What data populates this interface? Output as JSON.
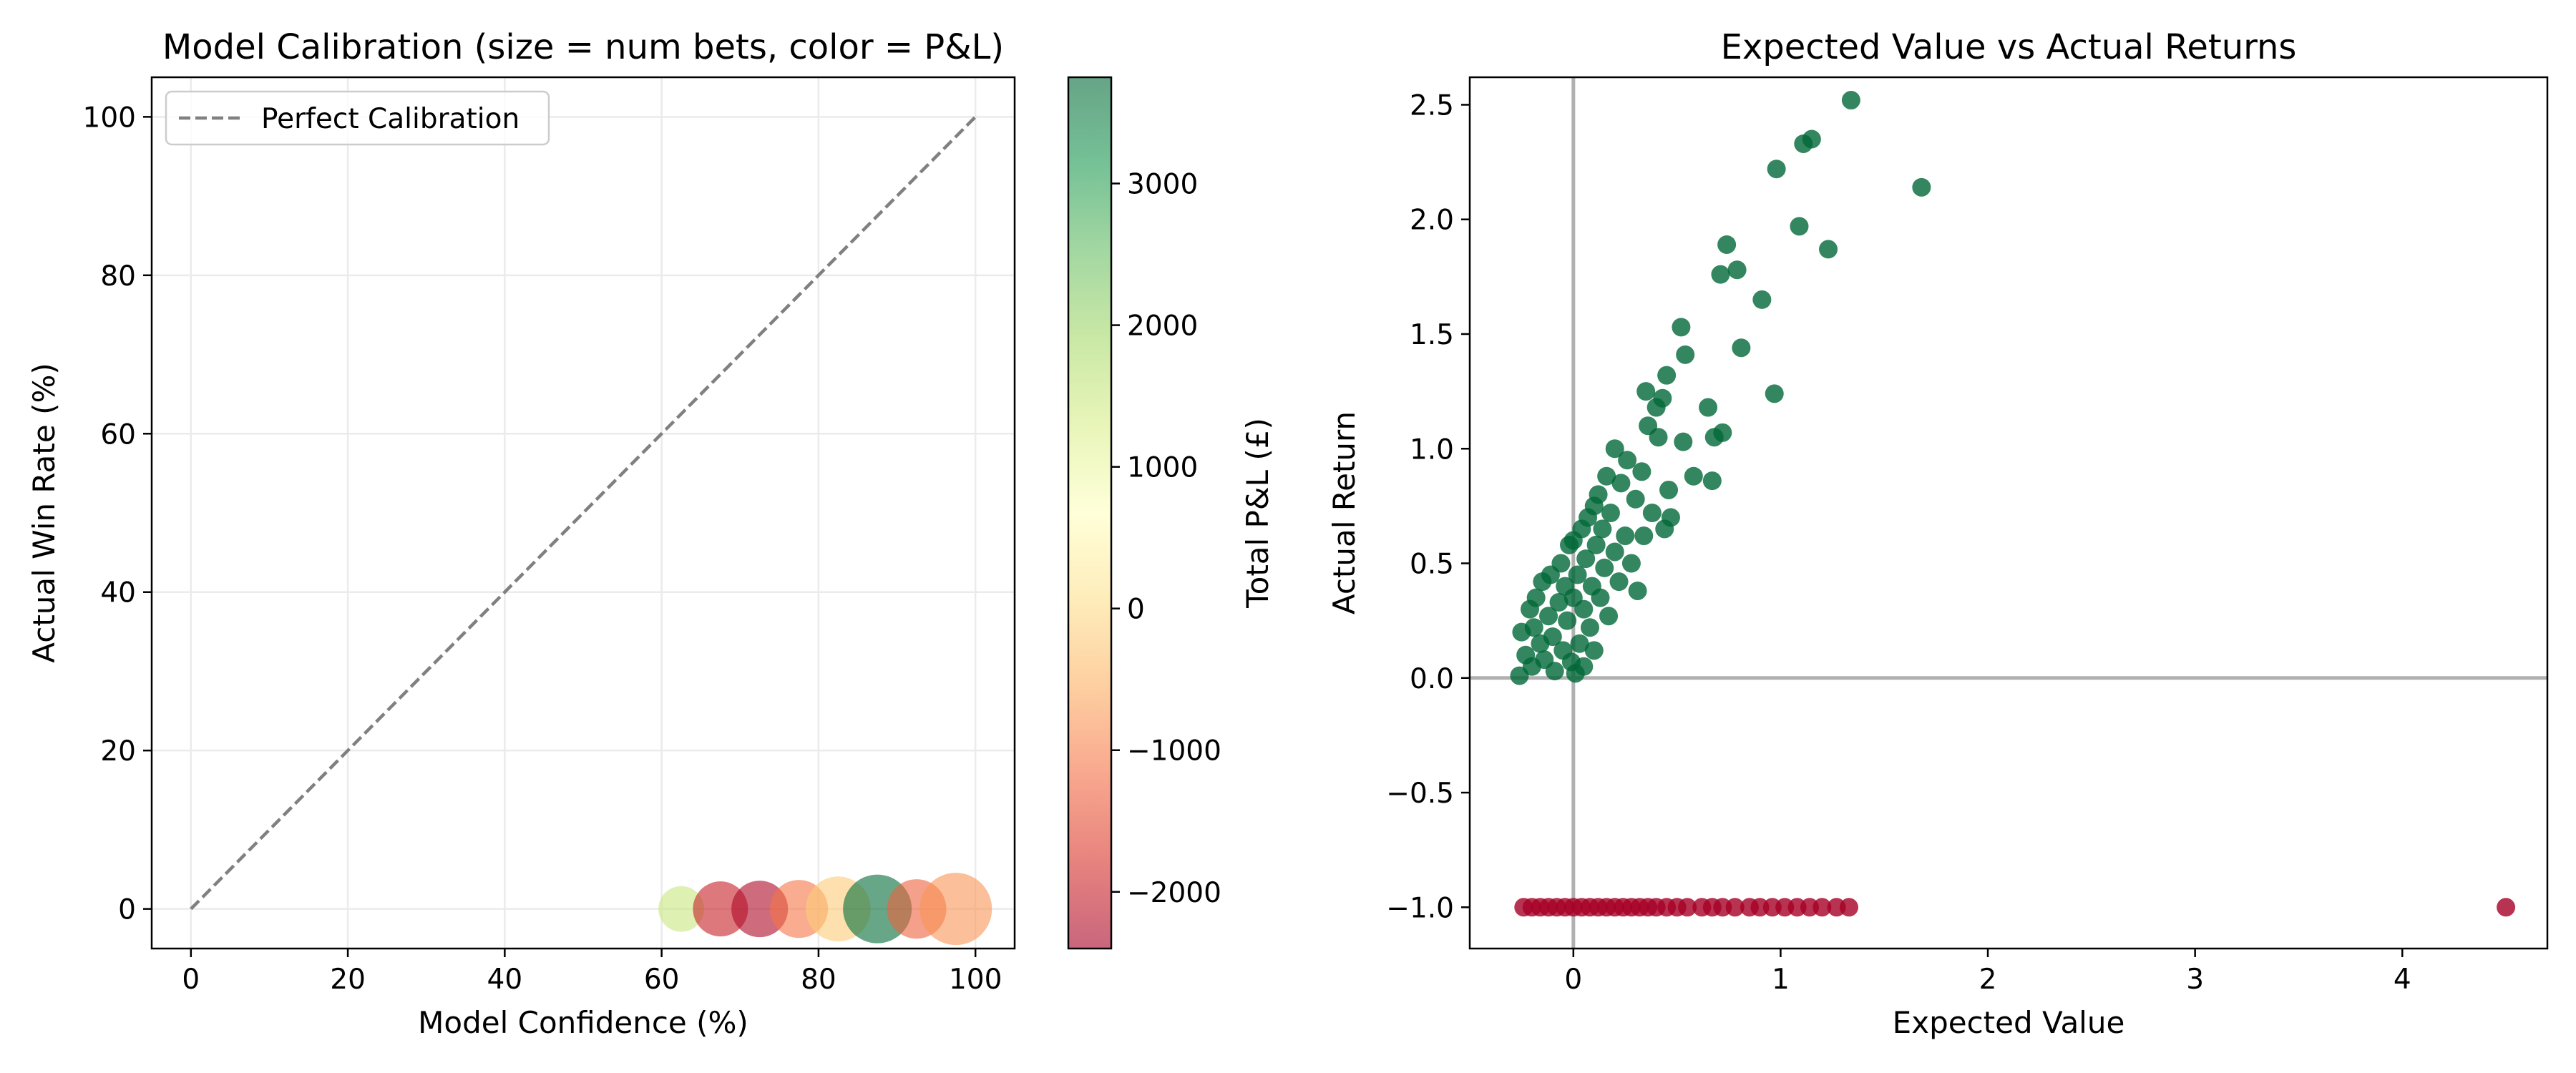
{
  "chart_data": [
    {
      "type": "scatter",
      "title": "Model Calibration (size = num bets, color = P&L)",
      "xlabel": "Model Confidence (%)",
      "ylabel": "Actual Win Rate (%)",
      "xlim": [
        -5,
        105
      ],
      "ylim": [
        -5,
        105
      ],
      "xticks": [
        0,
        20,
        40,
        60,
        80,
        100
      ],
      "yticks": [
        0,
        20,
        40,
        60,
        80,
        100
      ],
      "grid": true,
      "legend": {
        "position": "top-left",
        "entries": [
          "Perfect Calibration"
        ]
      },
      "reference_line": {
        "name": "Perfect Calibration",
        "x": [
          0,
          100
        ],
        "y": [
          0,
          100
        ],
        "style": "dashed",
        "color": "#808080"
      },
      "points": [
        {
          "x": 62.5,
          "y": 0,
          "num_bets": 62,
          "pnl": 1500
        },
        {
          "x": 67.5,
          "y": 0,
          "num_bets": 90,
          "pnl": -2000
        },
        {
          "x": 72.5,
          "y": 0,
          "num_bets": 95,
          "pnl": -2300
        },
        {
          "x": 77.5,
          "y": 0,
          "num_bets": 100,
          "pnl": -1100
        },
        {
          "x": 82.5,
          "y": 0,
          "num_bets": 125,
          "pnl": -200
        },
        {
          "x": 87.5,
          "y": 0,
          "num_bets": 140,
          "pnl": 3700
        },
        {
          "x": 92.5,
          "y": 0,
          "num_bets": 105,
          "pnl": -1300
        },
        {
          "x": 97.5,
          "y": 0,
          "num_bets": 155,
          "pnl": -800
        }
      ],
      "colorbar": {
        "label": "Total P&L (£)",
        "min": -2400,
        "max": 3750,
        "ticks": [
          3000,
          2000,
          1000,
          0,
          -1000,
          -2000
        ],
        "tick_labels": [
          "3000",
          "2000",
          "1000",
          "0",
          "−1000",
          "−2000"
        ],
        "colormap": "RdYlGn"
      }
    },
    {
      "type": "scatter",
      "title": "Expected Value vs Actual Returns",
      "xlabel": "Expected Value",
      "ylabel": "Actual Return",
      "xlim": [
        -0.5,
        4.7
      ],
      "ylim": [
        -1.18,
        2.62
      ],
      "xticks": [
        0,
        1,
        2,
        3,
        4
      ],
      "xtick_labels": [
        "0",
        "1",
        "2",
        "3",
        "4"
      ],
      "yticks": [
        -1.0,
        -0.5,
        0.0,
        0.5,
        1.0,
        1.5,
        2.0,
        2.5
      ],
      "ytick_labels": [
        "−1.0",
        "−0.5",
        "0.0",
        "0.5",
        "1.0",
        "1.5",
        "2.0",
        "2.5"
      ],
      "grid": false,
      "reference_lines": [
        {
          "axis": "x",
          "value": 0
        },
        {
          "axis": "y",
          "value": 0
        }
      ],
      "series": [
        {
          "name": "",
          "color": "#006837",
          "points": [
            [
              -0.26,
              0.01
            ],
            [
              -0.25,
              0.2
            ],
            [
              -0.23,
              0.1
            ],
            [
              -0.21,
              0.3
            ],
            [
              -0.2,
              0.05
            ],
            [
              -0.19,
              0.22
            ],
            [
              -0.18,
              0.35
            ],
            [
              -0.16,
              0.15
            ],
            [
              -0.15,
              0.42
            ],
            [
              -0.14,
              0.08
            ],
            [
              -0.12,
              0.27
            ],
            [
              -0.11,
              0.45
            ],
            [
              -0.1,
              0.18
            ],
            [
              -0.09,
              0.03
            ],
            [
              -0.07,
              0.33
            ],
            [
              -0.06,
              0.5
            ],
            [
              -0.05,
              0.12
            ],
            [
              -0.04,
              0.4
            ],
            [
              -0.03,
              0.25
            ],
            [
              -0.02,
              0.58
            ],
            [
              -0.01,
              0.07
            ],
            [
              0.0,
              0.6
            ],
            [
              0.0,
              0.35
            ],
            [
              0.01,
              0.02
            ],
            [
              0.02,
              0.45
            ],
            [
              0.03,
              0.15
            ],
            [
              0.04,
              0.65
            ],
            [
              0.05,
              0.3
            ],
            [
              0.05,
              0.05
            ],
            [
              0.06,
              0.52
            ],
            [
              0.07,
              0.7
            ],
            [
              0.08,
              0.22
            ],
            [
              0.09,
              0.4
            ],
            [
              0.1,
              0.75
            ],
            [
              0.1,
              0.12
            ],
            [
              0.11,
              0.58
            ],
            [
              0.12,
              0.8
            ],
            [
              0.13,
              0.35
            ],
            [
              0.14,
              0.65
            ],
            [
              0.15,
              0.48
            ],
            [
              0.16,
              0.88
            ],
            [
              0.17,
              0.27
            ],
            [
              0.18,
              0.72
            ],
            [
              0.2,
              0.55
            ],
            [
              0.2,
              1.0
            ],
            [
              0.22,
              0.42
            ],
            [
              0.23,
              0.85
            ],
            [
              0.25,
              0.62
            ],
            [
              0.26,
              0.95
            ],
            [
              0.28,
              0.5
            ],
            [
              0.3,
              0.78
            ],
            [
              0.31,
              0.38
            ],
            [
              0.33,
              0.9
            ],
            [
              0.34,
              0.62
            ],
            [
              0.35,
              1.25
            ],
            [
              0.36,
              1.1
            ],
            [
              0.38,
              0.72
            ],
            [
              0.4,
              1.18
            ],
            [
              0.41,
              1.05
            ],
            [
              0.43,
              1.22
            ],
            [
              0.44,
              0.65
            ],
            [
              0.45,
              1.32
            ],
            [
              0.46,
              0.82
            ],
            [
              0.47,
              0.7
            ],
            [
              0.52,
              1.53
            ],
            [
              0.54,
              1.41
            ],
            [
              0.53,
              1.03
            ],
            [
              0.58,
              0.88
            ],
            [
              0.65,
              1.18
            ],
            [
              0.67,
              0.86
            ],
            [
              0.68,
              1.05
            ],
            [
              0.71,
              1.76
            ],
            [
              0.72,
              1.07
            ],
            [
              0.74,
              1.89
            ],
            [
              0.79,
              1.78
            ],
            [
              0.81,
              1.44
            ],
            [
              0.91,
              1.65
            ],
            [
              0.97,
              1.24
            ],
            [
              0.98,
              2.22
            ],
            [
              1.09,
              1.97
            ],
            [
              1.11,
              2.33
            ],
            [
              1.15,
              2.35
            ],
            [
              1.23,
              1.87
            ],
            [
              1.34,
              2.52
            ],
            [
              1.68,
              2.14
            ]
          ]
        },
        {
          "name": "",
          "color": "#a50026",
          "points": [
            [
              -0.24,
              -1
            ],
            [
              -0.2,
              -1
            ],
            [
              -0.16,
              -1
            ],
            [
              -0.12,
              -1
            ],
            [
              -0.08,
              -1
            ],
            [
              -0.04,
              -1
            ],
            [
              0.0,
              -1
            ],
            [
              0.04,
              -1
            ],
            [
              0.08,
              -1
            ],
            [
              0.12,
              -1
            ],
            [
              0.16,
              -1
            ],
            [
              0.2,
              -1
            ],
            [
              0.24,
              -1
            ],
            [
              0.28,
              -1
            ],
            [
              0.32,
              -1
            ],
            [
              0.36,
              -1
            ],
            [
              0.4,
              -1
            ],
            [
              0.45,
              -1
            ],
            [
              0.5,
              -1
            ],
            [
              0.55,
              -1
            ],
            [
              0.62,
              -1
            ],
            [
              0.67,
              -1
            ],
            [
              0.72,
              -1
            ],
            [
              0.78,
              -1
            ],
            [
              0.85,
              -1
            ],
            [
              0.9,
              -1
            ],
            [
              0.96,
              -1
            ],
            [
              1.02,
              -1
            ],
            [
              1.08,
              -1
            ],
            [
              1.14,
              -1
            ],
            [
              1.2,
              -1
            ],
            [
              1.27,
              -1
            ],
            [
              1.33,
              -1
            ],
            [
              4.5,
              -1
            ]
          ]
        }
      ]
    }
  ]
}
